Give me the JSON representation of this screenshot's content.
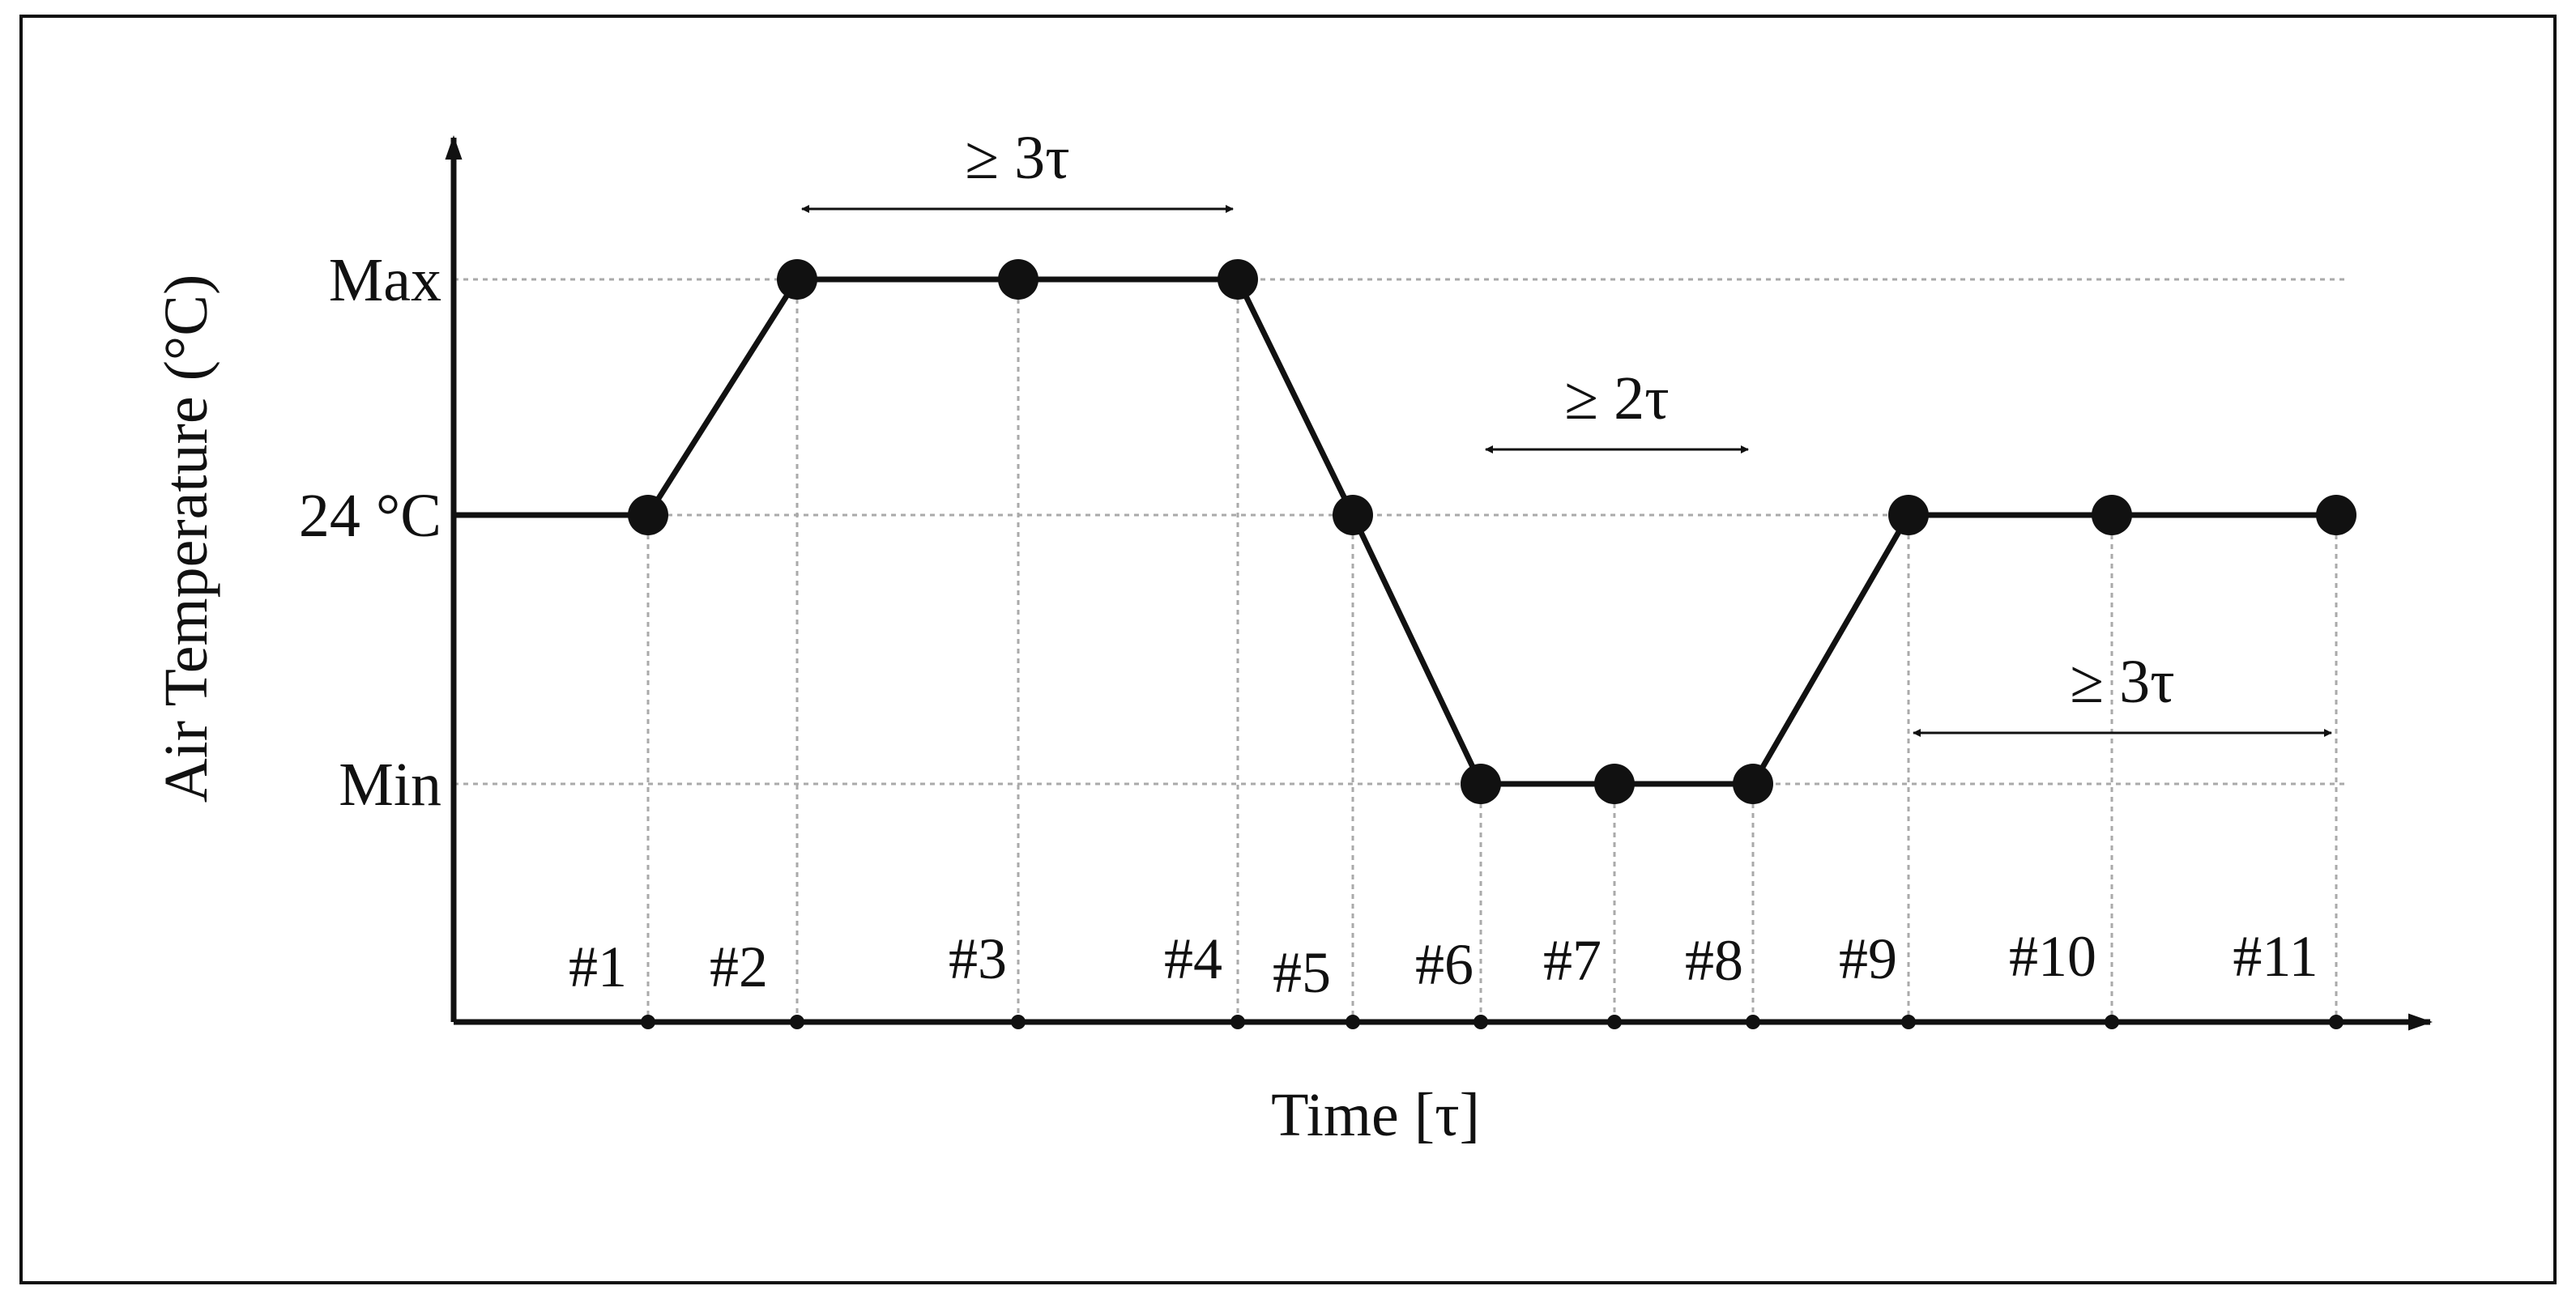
{
  "diagram": {
    "y_axis_label": "Air Temperature (°C)",
    "x_axis_label": "Time [τ]",
    "levels": [
      {
        "key": "max",
        "label": "Max"
      },
      {
        "key": "room",
        "label": "24 °C"
      },
      {
        "key": "min",
        "label": "Min"
      }
    ],
    "steps": [
      {
        "label": "#1",
        "level": "room"
      },
      {
        "label": "#2",
        "level": "max"
      },
      {
        "label": "#3",
        "level": "max"
      },
      {
        "label": "#4",
        "level": "max"
      },
      {
        "label": "#5",
        "level": "room"
      },
      {
        "label": "#6",
        "level": "min"
      },
      {
        "label": "#7",
        "level": "min"
      },
      {
        "label": "#8",
        "level": "min"
      },
      {
        "label": "#9",
        "level": "room"
      },
      {
        "label": "#10",
        "level": "room"
      },
      {
        "label": "#11",
        "level": "room"
      }
    ],
    "durations": [
      {
        "label": "≥ 3τ",
        "from_step": "#2",
        "to_step": "#4"
      },
      {
        "label": "≥ 2τ",
        "from_step": "#6",
        "to_step": "#8"
      },
      {
        "label": "≥ 3τ",
        "from_step": "#9",
        "to_step": "#11"
      }
    ],
    "colors": {
      "line": "#111111",
      "grid": "#aaaaaa",
      "frame": "#111111"
    }
  }
}
